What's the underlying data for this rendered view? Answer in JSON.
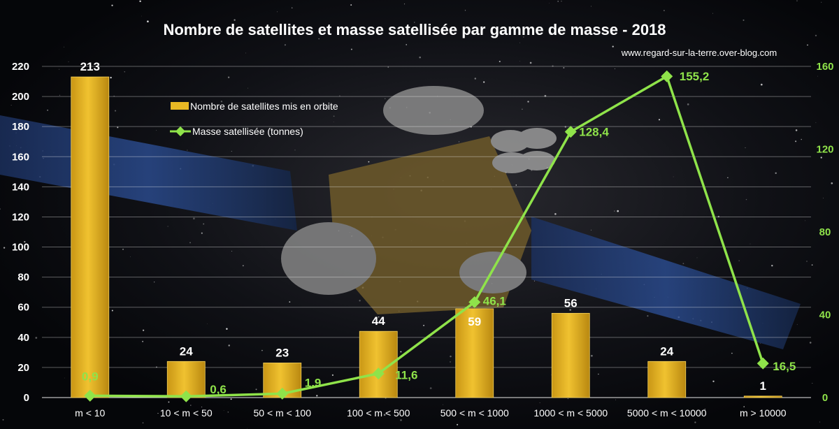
{
  "chart_data": {
    "type": "bar",
    "title": "Nombre de satellites et masse satellisée par gamme de masse - 2018",
    "source": "www.regard-sur-la-terre.over-blog.com",
    "categories": [
      "m < 10",
      "10 < m < 50",
      "50 < m < 100",
      "100 < m < 500",
      "500 < m < 1000",
      "1000 < m < 5000",
      "5000 < m < 10000",
      "m > 10000"
    ],
    "series": [
      {
        "name": "Nombre de satellites mis en orbite",
        "type": "bar",
        "axis": "left",
        "values": [
          213,
          24,
          23,
          44,
          59,
          56,
          24,
          1
        ],
        "labels": [
          "213",
          "24",
          "23",
          "44",
          "59",
          "56",
          "24",
          "1"
        ],
        "color": "#e8b824"
      },
      {
        "name": "Masse satellisée (tonnes)",
        "type": "line",
        "axis": "right",
        "values": [
          0.9,
          0.6,
          1.9,
          11.6,
          46.1,
          128.4,
          155.2,
          16.5
        ],
        "labels": [
          "0,9",
          "0,6",
          "1,9",
          "11,6",
          "46,1",
          "128,4",
          "155,2",
          "16,5"
        ],
        "color": "#8fe34a"
      }
    ],
    "y_left": {
      "min": 0,
      "max": 220,
      "ticks": [
        "0",
        "20",
        "40",
        "60",
        "80",
        "100",
        "120",
        "140",
        "160",
        "180",
        "200",
        "220"
      ]
    },
    "y_right": {
      "min": 0,
      "max": 160,
      "ticks": [
        "0",
        "40",
        "80",
        "120",
        "160"
      ]
    },
    "grid": true,
    "legend_position": "top-center"
  }
}
